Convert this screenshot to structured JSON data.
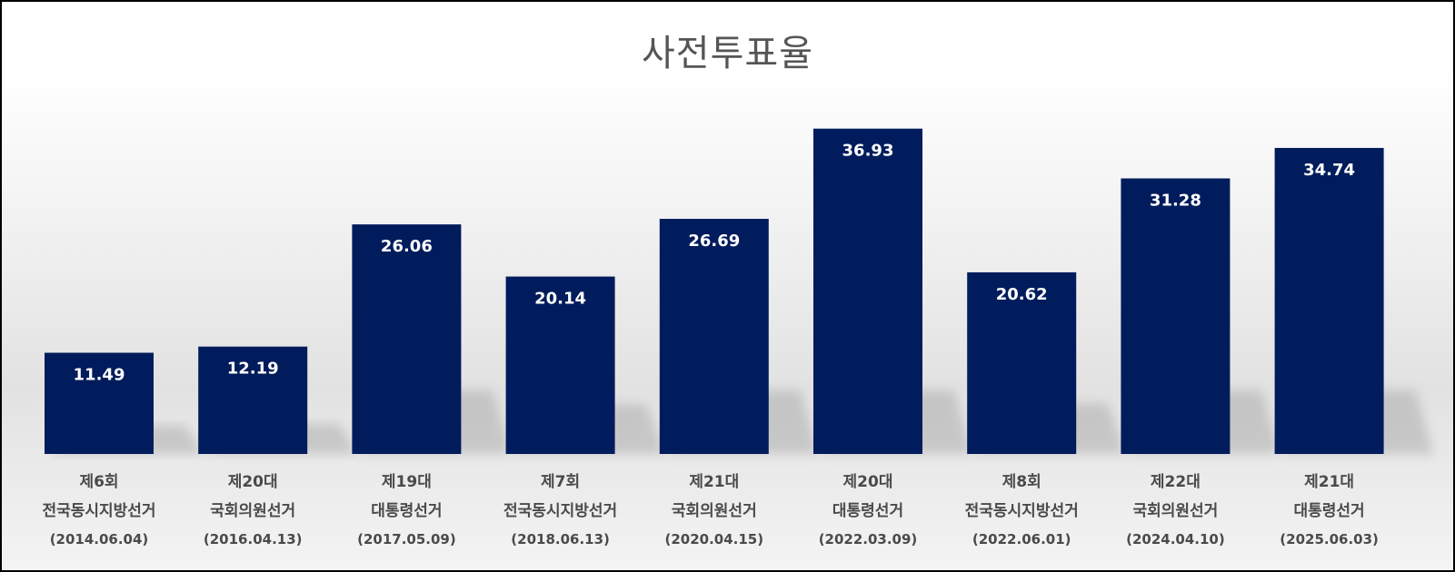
{
  "chart_data": {
    "type": "bar",
    "title": "사전투표율",
    "xlabel": "",
    "ylabel": "",
    "ylim": [
      0,
      40
    ],
    "grid": false,
    "legend": "none",
    "bar_color": "#001c5c",
    "data_label_color": "#ffffff",
    "categories": [
      [
        "제6회",
        "전국동시지방선거",
        "(2014.06.04)"
      ],
      [
        "제20대",
        "국회의원선거",
        "(2016.04.13)"
      ],
      [
        "제19대",
        "대통령선거",
        "(2017.05.09)"
      ],
      [
        "제7회",
        "전국동시지방선거",
        "(2018.06.13)"
      ],
      [
        "제21대",
        "국회의원선거",
        "(2020.04.15)"
      ],
      [
        "제20대",
        "대통령선거",
        "(2022.03.09)"
      ],
      [
        "제8회",
        "전국동시지방선거",
        "(2022.06.01)"
      ],
      [
        "제22대",
        "국회의원선거",
        "(2024.04.10)"
      ],
      [
        "제21대",
        "대통령선거",
        "(2025.06.03)"
      ]
    ],
    "values": [
      11.49,
      12.19,
      26.06,
      20.14,
      26.69,
      36.93,
      20.62,
      31.28,
      34.74
    ],
    "value_labels": [
      "11.49",
      "12.19",
      "26.06",
      "20.14",
      "26.69",
      "36.93",
      "20.62",
      "31.28",
      "34.74"
    ]
  }
}
